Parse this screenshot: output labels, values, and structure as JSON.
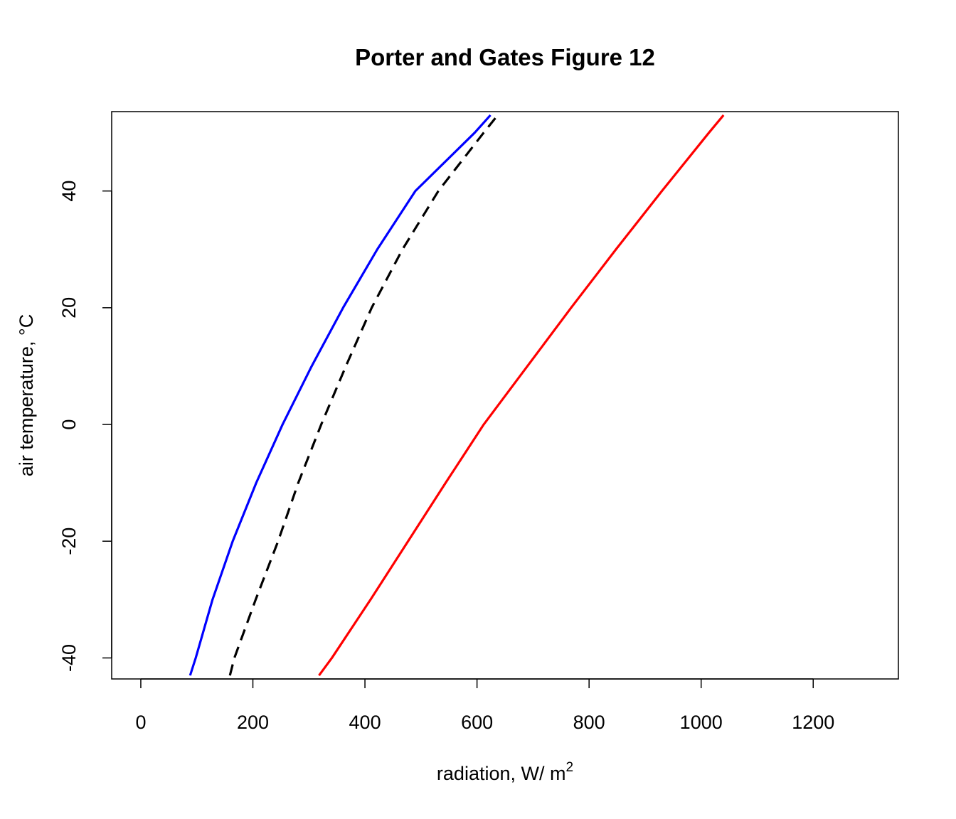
{
  "chart_data": {
    "type": "line",
    "title": "Porter and Gates Figure 12",
    "xlabel": "radiation, W/ m",
    "xlabel_superscript": "2",
    "ylabel": "air temperature, °C",
    "xlim": [
      -52,
      1352
    ],
    "ylim": [
      -43.6,
      53.6
    ],
    "xticks": [
      0,
      200,
      400,
      600,
      800,
      1000,
      1200
    ],
    "yticks": [
      -40,
      -20,
      0,
      20,
      40
    ],
    "y": [
      -43,
      -40,
      -30,
      -20,
      -10,
      0,
      10,
      20,
      30,
      40,
      50,
      53
    ],
    "series": [
      {
        "color": "#0000ff",
        "linestyle": "solid",
        "x": [
          88,
          98,
          128,
          164,
          206,
          253,
          305,
          361,
          422,
          490,
          596,
          624
        ]
      },
      {
        "color": "#000000",
        "linestyle": "dashed",
        "x": [
          159,
          167,
          205,
          245,
          281,
          322,
          366,
          412,
          467,
          531,
          612,
          637
        ]
      },
      {
        "color": "#ff0000",
        "linestyle": "solid",
        "x": [
          318,
          341,
          410,
          477,
          544,
          612,
          690,
          768,
          848,
          930,
          1014,
          1040
        ]
      }
    ]
  }
}
